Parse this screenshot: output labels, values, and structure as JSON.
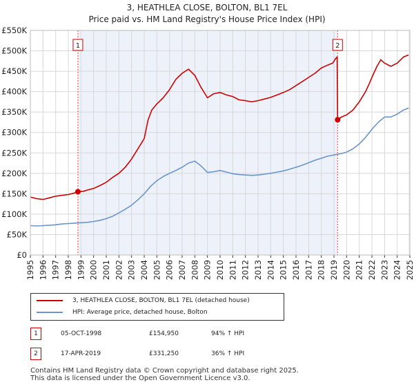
{
  "title_line1": "3, HEATHLEA CLOSE, BOLTON, BL1 7EL",
  "title_line2": "Price paid vs. HM Land Registry's House Price Index (HPI)",
  "chart_data": {
    "type": "line",
    "ylim": [
      0,
      550000
    ],
    "xlim": [
      1995,
      2025
    ],
    "y_ticks": [
      {
        "value": 0,
        "label": "£0"
      },
      {
        "value": 50000,
        "label": "£50K"
      },
      {
        "value": 100000,
        "label": "£100K"
      },
      {
        "value": 150000,
        "label": "£150K"
      },
      {
        "value": 200000,
        "label": "£200K"
      },
      {
        "value": 250000,
        "label": "£250K"
      },
      {
        "value": 300000,
        "label": "£300K"
      },
      {
        "value": 350000,
        "label": "£350K"
      },
      {
        "value": 400000,
        "label": "£400K"
      },
      {
        "value": 450000,
        "label": "£450K"
      },
      {
        "value": 500000,
        "label": "£500K"
      },
      {
        "value": 550000,
        "label": "£550K"
      }
    ],
    "x_ticks": [
      "1995",
      "1996",
      "1997",
      "1998",
      "1999",
      "2000",
      "2001",
      "2002",
      "2003",
      "2004",
      "2005",
      "2006",
      "2007",
      "2008",
      "2009",
      "2010",
      "2011",
      "2012",
      "2013",
      "2014",
      "2015",
      "2016",
      "2017",
      "2018",
      "2019",
      "2020",
      "2021",
      "2022",
      "2023",
      "2024",
      "2025"
    ],
    "grid": true,
    "shaded_regions": [
      {
        "from": 1998.76,
        "to": 2019.29
      }
    ],
    "series": [
      {
        "name": "3, HEATHLEA CLOSE, BOLTON, BL1 7EL (detached house)",
        "color": "#cc0000",
        "points": [
          [
            1995.0,
            142000
          ],
          [
            1995.5,
            138000
          ],
          [
            1996.0,
            136000
          ],
          [
            1996.5,
            140000
          ],
          [
            1997.0,
            144000
          ],
          [
            1997.5,
            146000
          ],
          [
            1998.0,
            148000
          ],
          [
            1998.5,
            152000
          ],
          [
            1998.76,
            154950
          ],
          [
            1999.2,
            156000
          ],
          [
            1999.6,
            160000
          ],
          [
            2000.0,
            163000
          ],
          [
            2000.5,
            170000
          ],
          [
            2001.0,
            178000
          ],
          [
            2001.5,
            190000
          ],
          [
            2002.0,
            200000
          ],
          [
            2002.5,
            215000
          ],
          [
            2003.0,
            235000
          ],
          [
            2003.5,
            260000
          ],
          [
            2004.0,
            285000
          ],
          [
            2004.3,
            330000
          ],
          [
            2004.6,
            355000
          ],
          [
            2005.0,
            370000
          ],
          [
            2005.5,
            385000
          ],
          [
            2006.0,
            405000
          ],
          [
            2006.5,
            430000
          ],
          [
            2007.0,
            445000
          ],
          [
            2007.5,
            455000
          ],
          [
            2008.0,
            440000
          ],
          [
            2008.5,
            410000
          ],
          [
            2009.0,
            385000
          ],
          [
            2009.5,
            395000
          ],
          [
            2010.0,
            398000
          ],
          [
            2010.5,
            392000
          ],
          [
            2011.0,
            388000
          ],
          [
            2011.5,
            380000
          ],
          [
            2012.0,
            378000
          ],
          [
            2012.5,
            375000
          ],
          [
            2013.0,
            378000
          ],
          [
            2013.5,
            382000
          ],
          [
            2014.0,
            386000
          ],
          [
            2014.5,
            392000
          ],
          [
            2015.0,
            398000
          ],
          [
            2015.5,
            405000
          ],
          [
            2016.0,
            415000
          ],
          [
            2016.5,
            425000
          ],
          [
            2017.0,
            435000
          ],
          [
            2017.5,
            445000
          ],
          [
            2018.0,
            458000
          ],
          [
            2018.5,
            465000
          ],
          [
            2018.9,
            470000
          ],
          [
            2019.15,
            482000
          ],
          [
            2019.25,
            485000
          ],
          [
            2019.29,
            331250
          ],
          [
            2019.6,
            338000
          ],
          [
            2020.0,
            343000
          ],
          [
            2020.5,
            355000
          ],
          [
            2021.0,
            375000
          ],
          [
            2021.5,
            400000
          ],
          [
            2021.8,
            420000
          ],
          [
            2022.0,
            435000
          ],
          [
            2022.4,
            462000
          ],
          [
            2022.7,
            478000
          ],
          [
            2023.0,
            470000
          ],
          [
            2023.5,
            462000
          ],
          [
            2024.0,
            470000
          ],
          [
            2024.5,
            485000
          ],
          [
            2024.9,
            490000
          ]
        ]
      },
      {
        "name": "HPI: Average price, detached house, Bolton",
        "color": "#6a94c8",
        "points": [
          [
            1995.0,
            72000
          ],
          [
            1995.5,
            71000
          ],
          [
            1996.0,
            72000
          ],
          [
            1996.5,
            73000
          ],
          [
            1997.0,
            74000
          ],
          [
            1997.5,
            76000
          ],
          [
            1998.0,
            77000
          ],
          [
            1998.5,
            78000
          ],
          [
            1999.0,
            79000
          ],
          [
            1999.5,
            80000
          ],
          [
            2000.0,
            82000
          ],
          [
            2000.5,
            85000
          ],
          [
            2001.0,
            89000
          ],
          [
            2001.5,
            95000
          ],
          [
            2002.0,
            103000
          ],
          [
            2002.5,
            112000
          ],
          [
            2003.0,
            122000
          ],
          [
            2003.5,
            135000
          ],
          [
            2004.0,
            150000
          ],
          [
            2004.5,
            168000
          ],
          [
            2005.0,
            182000
          ],
          [
            2005.5,
            192000
          ],
          [
            2006.0,
            200000
          ],
          [
            2006.5,
            207000
          ],
          [
            2007.0,
            215000
          ],
          [
            2007.5,
            225000
          ],
          [
            2008.0,
            230000
          ],
          [
            2008.5,
            218000
          ],
          [
            2009.0,
            202000
          ],
          [
            2009.5,
            204000
          ],
          [
            2010.0,
            207000
          ],
          [
            2010.5,
            203000
          ],
          [
            2011.0,
            199000
          ],
          [
            2011.5,
            197000
          ],
          [
            2012.0,
            196000
          ],
          [
            2012.5,
            195000
          ],
          [
            2013.0,
            196000
          ],
          [
            2013.5,
            198000
          ],
          [
            2014.0,
            200000
          ],
          [
            2014.5,
            203000
          ],
          [
            2015.0,
            206000
          ],
          [
            2015.5,
            210000
          ],
          [
            2016.0,
            215000
          ],
          [
            2016.5,
            220000
          ],
          [
            2017.0,
            226000
          ],
          [
            2017.5,
            232000
          ],
          [
            2018.0,
            237000
          ],
          [
            2018.5,
            242000
          ],
          [
            2019.0,
            245000
          ],
          [
            2019.5,
            248000
          ],
          [
            2020.0,
            252000
          ],
          [
            2020.5,
            260000
          ],
          [
            2021.0,
            272000
          ],
          [
            2021.5,
            288000
          ],
          [
            2022.0,
            308000
          ],
          [
            2022.5,
            325000
          ],
          [
            2023.0,
            338000
          ],
          [
            2023.5,
            338000
          ],
          [
            2024.0,
            345000
          ],
          [
            2024.5,
            355000
          ],
          [
            2024.9,
            360000
          ]
        ]
      }
    ],
    "markers": [
      {
        "label": "1",
        "x": 1998.76,
        "y": 154950
      },
      {
        "label": "2",
        "x": 2019.29,
        "y": 331250
      }
    ]
  },
  "legend": {
    "property_label": "3, HEATHLEA CLOSE, BOLTON, BL1 7EL (detached house)",
    "hpi_label": "HPI: Average price, detached house, Bolton"
  },
  "annotations": [
    {
      "id": "1",
      "date": "05-OCT-1998",
      "price": "£154,950",
      "hpi": "94% ↑ HPI"
    },
    {
      "id": "2",
      "date": "17-APR-2019",
      "price": "£331,250",
      "hpi": "36% ↑ HPI"
    }
  ],
  "footer_line1": "Contains HM Land Registry data © Crown copyright and database right 2025.",
  "footer_line2": "This data is licensed under the Open Government Licence v3.0."
}
